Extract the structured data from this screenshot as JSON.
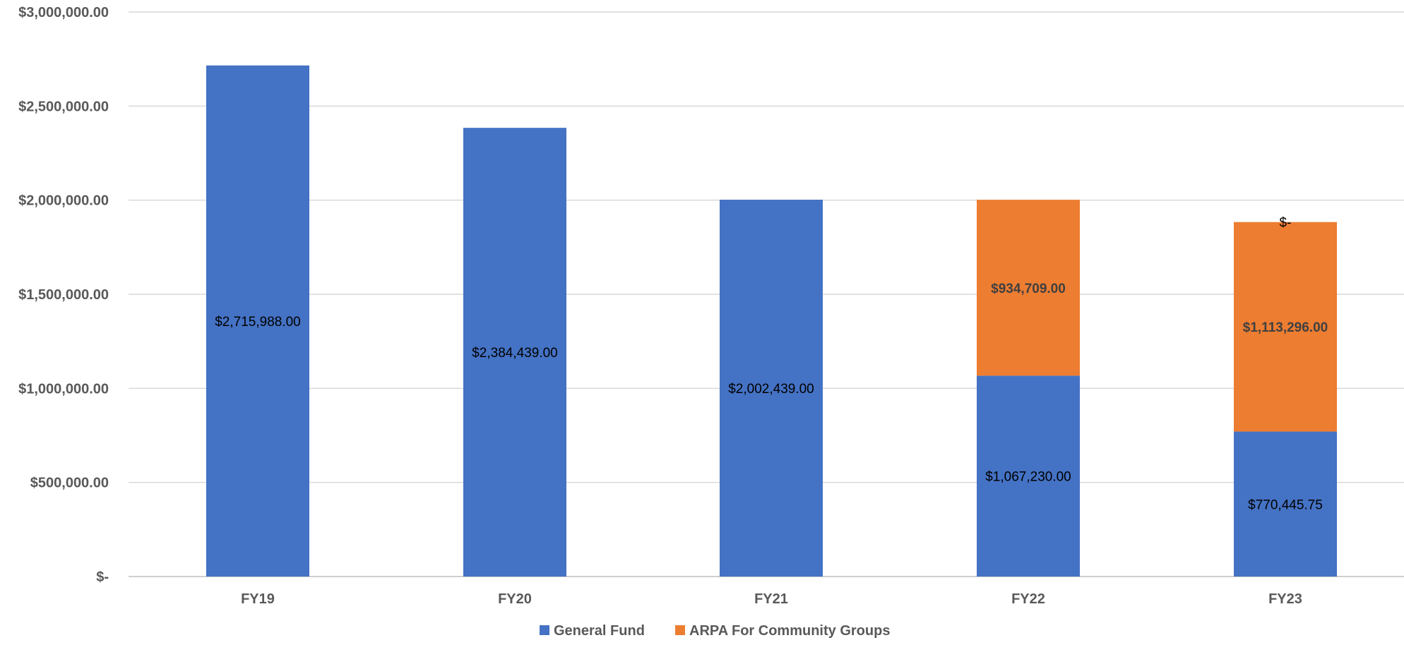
{
  "chart_data": {
    "type": "bar",
    "stacked": true,
    "categories": [
      "FY19",
      "FY20",
      "FY21",
      "FY22",
      "FY23"
    ],
    "series": [
      {
        "name": "General Fund",
        "color": "#4472C4",
        "values": [
          2715988.0,
          2384439.0,
          2002439.0,
          1067230.0,
          770445.75
        ],
        "labels": [
          "$2,715,988.00",
          "$2,384,439.00",
          "$2,002,439.00",
          "$1,067,230.00",
          "$770,445.75"
        ]
      },
      {
        "name": "ARPA For Community Groups",
        "color": "#ED7D31",
        "values": [
          0,
          0,
          0,
          934709.0,
          1113296.0
        ],
        "labels": [
          "",
          "",
          "",
          "$934,709.00",
          "$1,113,296.00"
        ]
      }
    ],
    "y_ticks": [
      {
        "value": 0,
        "label": "$-"
      },
      {
        "value": 500000,
        "label": "$500,000.00"
      },
      {
        "value": 1000000,
        "label": "$1,000,000.00"
      },
      {
        "value": 1500000,
        "label": "$1,500,000.00"
      },
      {
        "value": 2000000,
        "label": "$2,000,000.00"
      },
      {
        "value": 2500000,
        "label": "$2,500,000.00"
      },
      {
        "value": 3000000,
        "label": "$3,000,000.00"
      }
    ],
    "ylim": [
      0,
      3000000
    ],
    "grid": true,
    "legend_position": "bottom",
    "annotations": [
      {
        "category": "FY23",
        "value": 1883741.75,
        "text": "$-"
      }
    ],
    "gridline_color": "#D9D9D9",
    "axis_color": "#BFBFBF"
  }
}
